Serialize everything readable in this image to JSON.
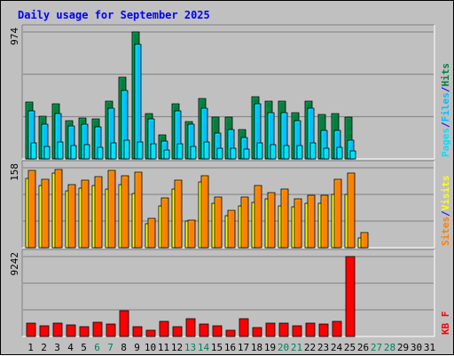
{
  "chart_data": {
    "type": "bar",
    "title": "Daily usage for September 2025",
    "colors": {
      "background": "#c0c0c0",
      "plot_bg": "#c0c0c0",
      "title": "#0000ff",
      "gridline": "#808080",
      "hits": "#008040",
      "files": "#00c0ff",
      "pages": "#00e0ff",
      "visits": "#ffff00",
      "sites": "#ff8000",
      "kbytes": "#ff0000",
      "weekday": "#000000",
      "weekend": "#00805c",
      "separator": "#0000ff"
    },
    "days": [
      "1",
      "2",
      "3",
      "4",
      "5",
      "6",
      "7",
      "8",
      "9",
      "10",
      "11",
      "12",
      "13",
      "14",
      "15",
      "16",
      "17",
      "18",
      "19",
      "20",
      "21",
      "22",
      "23",
      "24",
      "25",
      "26",
      "27",
      "28",
      "29",
      "30",
      "31"
    ],
    "weekend_days": [
      "6",
      "7",
      "13",
      "14",
      "20",
      "21",
      "27",
      "28"
    ],
    "panels": [
      {
        "name": "pages-files-hits",
        "ymax_label": "974",
        "ylim": [
          0,
          974
        ],
        "legend": [
          {
            "label": "Pages",
            "color_key": "pages"
          },
          {
            "label": "/",
            "color_key": "separator"
          },
          {
            "label": "Files",
            "color_key": "files"
          },
          {
            "label": "/",
            "color_key": "separator"
          },
          {
            "label": "Hits",
            "color_key": "hits"
          }
        ],
        "series": [
          {
            "name": "Hits",
            "color_key": "hits",
            "values": [
              435,
              330,
              420,
              295,
              315,
              305,
              440,
              630,
              974,
              350,
              185,
              420,
              285,
              460,
              320,
              320,
              225,
              480,
              440,
              440,
              355,
              445,
              340,
              345,
              320,
              0,
              0,
              0,
              0,
              0,
              0
            ]
          },
          {
            "name": "Files",
            "color_key": "files",
            "values": [
              370,
              265,
              345,
              255,
              265,
              245,
              385,
              525,
              880,
              305,
              135,
              370,
              265,
              385,
              195,
              225,
              165,
              425,
              355,
              355,
              290,
              385,
              220,
              215,
              140,
              0,
              0,
              0,
              0,
              0,
              0
            ]
          },
          {
            "name": "Pages",
            "color_key": "pages",
            "values": [
              120,
              95,
              130,
              105,
              110,
              90,
              125,
              140,
              130,
              115,
              70,
              115,
              95,
              130,
              80,
              85,
              75,
              120,
              110,
              105,
              100,
              120,
              85,
              90,
              60,
              0,
              0,
              0,
              0,
              0,
              0
            ]
          }
        ]
      },
      {
        "name": "sites-visits",
        "ymax_label": "158",
        "ylim": [
          0,
          158
        ],
        "legend": [
          {
            "label": "Sites",
            "color_key": "sites"
          },
          {
            "label": "/",
            "color_key": "separator"
          },
          {
            "label": "Visits",
            "color_key": "visits"
          }
        ],
        "series": [
          {
            "name": "Visits",
            "color_key": "visits",
            "values": [
              137,
              123,
              148,
              113,
              117,
              123,
              115,
              125,
              107,
              47,
              82,
              115,
              53,
              130,
              87,
              63,
              83,
              90,
              97,
              83,
              80,
              87,
              87,
              105,
              105,
              20,
              0,
              0,
              0,
              0,
              0
            ]
          },
          {
            "name": "Sites",
            "color_key": "sites",
            "values": [
              152,
              135,
              155,
              125,
              133,
              140,
              152,
              143,
              150,
              58,
              98,
              133,
              55,
              142,
              100,
              73,
              100,
              123,
              108,
              115,
              97,
              103,
              103,
              135,
              148,
              30,
              0,
              0,
              0,
              0,
              0
            ]
          }
        ]
      },
      {
        "name": "kbytes",
        "ymax_label": "9242",
        "ylim": [
          0,
          9242
        ],
        "legend": [
          {
            "label": "KB F",
            "color_key": "kbytes"
          }
        ],
        "series": [
          {
            "name": "KB F",
            "color_key": "kbytes",
            "values": [
              1500,
              1200,
              1550,
              1300,
              1150,
              1600,
              1400,
              3000,
              1100,
              750,
              1700,
              1150,
              2100,
              1450,
              1200,
              760,
              2100,
              1000,
              1550,
              1500,
              1250,
              1550,
              1450,
              1750,
              9242,
              0,
              0,
              0,
              0,
              0,
              0
            ]
          }
        ]
      }
    ]
  }
}
